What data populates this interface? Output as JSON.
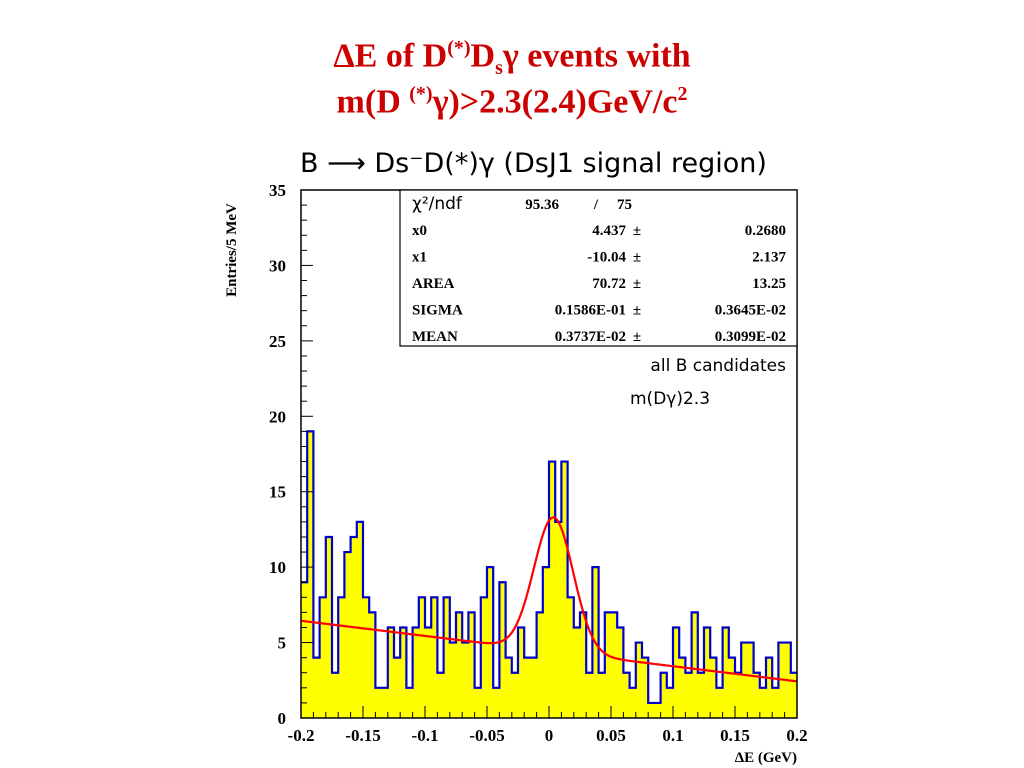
{
  "slide": {
    "title_line1_a": "ΔE of D",
    "title_line1_sup": "(*)",
    "title_line1_b": "D",
    "title_line1_sub": "s",
    "title_line1_c": "γ events with",
    "title_line2_a": "m(D ",
    "title_line2_sup": "(*)",
    "title_line2_b": "γ)>2.3(2.4)GeV/c",
    "title_line2_sup2": "2",
    "title_color": "#cc0000"
  },
  "chart_data": {
    "type": "bar",
    "title": "B ⟶ Ds⁻D(*)γ (DsJ1 signal region)",
    "xlabel": "ΔE (GeV)",
    "ylabel": "Entries/5 MeV",
    "xlim": [
      -0.2,
      0.2
    ],
    "ylim": [
      0,
      35
    ],
    "x_ticks": [
      "-0.2",
      "-0.15",
      "-0.1",
      "-0.05",
      "0",
      "0.05",
      "0.1",
      "0.15",
      "0.2"
    ],
    "y_ticks": [
      "0",
      "5",
      "10",
      "15",
      "20",
      "25",
      "30",
      "35"
    ],
    "bin_width": 0.005,
    "bin_low_edges": [
      -0.2,
      -0.195,
      -0.19,
      -0.185,
      -0.18,
      -0.175,
      -0.17,
      -0.165,
      -0.16,
      -0.155,
      -0.15,
      -0.145,
      -0.14,
      -0.135,
      -0.13,
      -0.125,
      -0.12,
      -0.115,
      -0.11,
      -0.105,
      -0.1,
      -0.095,
      -0.09,
      -0.085,
      -0.08,
      -0.075,
      -0.07,
      -0.065,
      -0.06,
      -0.055,
      -0.05,
      -0.045,
      -0.04,
      -0.035,
      -0.03,
      -0.025,
      -0.02,
      -0.015,
      -0.01,
      -0.005,
      0,
      0.005,
      0.01,
      0.015,
      0.02,
      0.025,
      0.03,
      0.035,
      0.04,
      0.045,
      0.05,
      0.055,
      0.06,
      0.065,
      0.07,
      0.075,
      0.08,
      0.085,
      0.09,
      0.095,
      0.1,
      0.105,
      0.11,
      0.115,
      0.12,
      0.125,
      0.13,
      0.135,
      0.14,
      0.145,
      0.15,
      0.155,
      0.16,
      0.165,
      0.17,
      0.175,
      0.18,
      0.185,
      0.19,
      0.195
    ],
    "values": [
      9,
      19,
      4,
      8,
      12,
      3,
      8,
      11,
      12,
      13,
      8,
      7,
      2,
      2,
      6,
      4,
      6,
      2,
      6,
      8,
      6,
      8,
      3,
      8,
      5,
      7,
      5,
      7,
      2,
      8,
      10,
      2,
      9,
      4,
      3,
      6,
      4,
      4,
      7,
      10,
      17,
      13,
      17,
      8,
      6,
      7,
      3,
      10,
      3,
      7,
      7,
      6,
      3,
      2,
      5,
      4,
      1,
      1,
      3,
      2,
      6,
      4,
      3,
      7,
      3,
      6,
      4,
      2,
      6,
      4,
      3,
      5,
      5,
      3,
      2,
      4,
      2,
      5,
      5,
      3
    ],
    "fill_color": "#ffff00",
    "outline_color": "#0000cc",
    "fit": {
      "color": "#ff0000",
      "stats": [
        {
          "label": "x0",
          "value": "4.437",
          "pm": "±",
          "error": "0.2680"
        },
        {
          "label": "x1",
          "value": "-10.04",
          "pm": "±",
          "error": "2.137"
        },
        {
          "label": "AREA",
          "value": "70.72",
          "pm": "±",
          "error": "13.25"
        },
        {
          "label": "SIGMA",
          "value": "0.1586E-01",
          "pm": "±",
          "error": "0.3645E-02"
        },
        {
          "label": "MEAN",
          "value": "0.3737E-02",
          "pm": "±",
          "error": "0.3099E-02"
        }
      ],
      "chi2_label": "χ²/ndf",
      "chi2_value": "95.36",
      "chi2_sep": "/",
      "ndf": "75",
      "model": {
        "intercept": 4.437,
        "slope": -10.04,
        "area": 70.72,
        "sigma": 0.01586,
        "mean": 0.003737
      }
    },
    "annotations": [
      "all B candidates",
      "m(Dγ)2.3"
    ]
  }
}
